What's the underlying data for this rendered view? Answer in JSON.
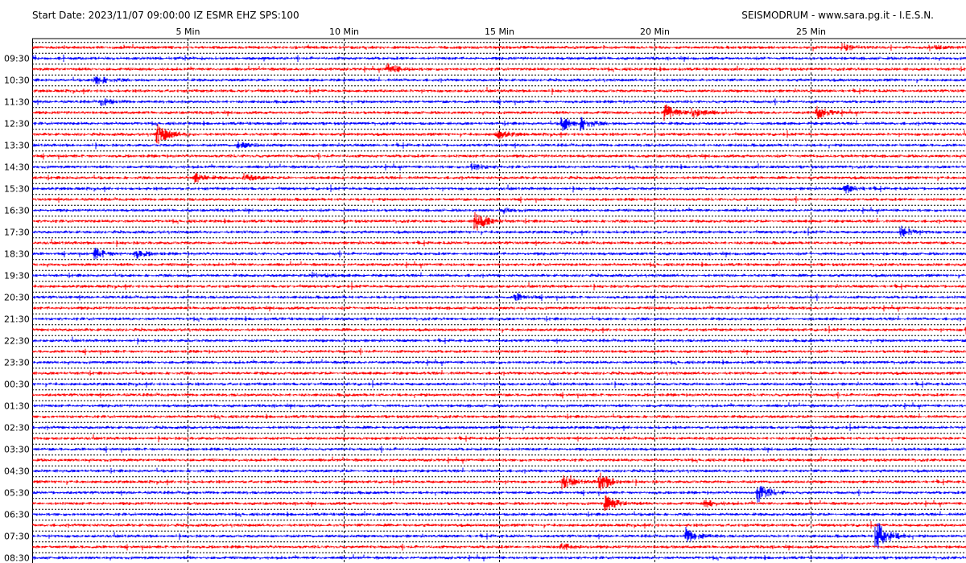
{
  "header": {
    "left_text": "Start Date: 2023/11/07 09:00:00 IZ ESMR EHZ SPS:100",
    "right_text": "SEISMODRUM - www.sara.pg.it - I.E.S.N."
  },
  "colors": {
    "trace_a": "#ff0000",
    "trace_b": "#0000ff",
    "grid": "#000000",
    "background": "#ffffff"
  },
  "chart_data": {
    "type": "line",
    "x_ticks": [
      {
        "value": 5,
        "label": "5 Min"
      },
      {
        "value": 10,
        "label": "10 Min"
      },
      {
        "value": 15,
        "label": "15 Min"
      },
      {
        "value": 20,
        "label": "20 Min"
      },
      {
        "value": 25,
        "label": "25 Min"
      }
    ],
    "x_range": [
      0,
      30
    ],
    "trace_count": 48,
    "time_labels": [
      "09:30",
      "10:30",
      "11:30",
      "12:30",
      "13:30",
      "14:30",
      "15:30",
      "16:30",
      "17:30",
      "18:30",
      "19:30",
      "20:30",
      "21:30",
      "22:30",
      "23:30",
      "00:30",
      "01:30",
      "02:30",
      "03:30",
      "04:30",
      "05:30",
      "06:30",
      "07:30",
      "08:30"
    ],
    "events": [
      {
        "trace": 0,
        "minute": 26.0,
        "amp": 0.5
      },
      {
        "trace": 0,
        "minute": 28.8,
        "amp": 0.4
      },
      {
        "trace": 3,
        "minute": 2.0,
        "amp": 0.8
      },
      {
        "trace": 2,
        "minute": 11.4,
        "amp": 0.8
      },
      {
        "trace": 5,
        "minute": 2.2,
        "amp": 0.5
      },
      {
        "trace": 6,
        "minute": 20.3,
        "amp": 1.2
      },
      {
        "trace": 6,
        "minute": 21.2,
        "amp": 0.8
      },
      {
        "trace": 6,
        "minute": 25.2,
        "amp": 0.8
      },
      {
        "trace": 7,
        "minute": 17.0,
        "amp": 1.0
      },
      {
        "trace": 7,
        "minute": 17.6,
        "amp": 0.8
      },
      {
        "trace": 8,
        "minute": 4.0,
        "amp": 1.5
      },
      {
        "trace": 8,
        "minute": 14.9,
        "amp": 0.7
      },
      {
        "trace": 9,
        "minute": 6.6,
        "amp": 0.5
      },
      {
        "trace": 11,
        "minute": 14.1,
        "amp": 0.5
      },
      {
        "trace": 12,
        "minute": 5.2,
        "amp": 0.7
      },
      {
        "trace": 12,
        "minute": 6.8,
        "amp": 0.5
      },
      {
        "trace": 13,
        "minute": 26.1,
        "amp": 0.6
      },
      {
        "trace": 15,
        "minute": 15.1,
        "amp": 0.3
      },
      {
        "trace": 16,
        "minute": 14.2,
        "amp": 1.5
      },
      {
        "trace": 17,
        "minute": 27.9,
        "amp": 0.8
      },
      {
        "trace": 19,
        "minute": 2.0,
        "amp": 0.8
      },
      {
        "trace": 19,
        "minute": 3.3,
        "amp": 0.6
      },
      {
        "trace": 21,
        "minute": 9.0,
        "amp": 0.5
      },
      {
        "trace": 23,
        "minute": 15.5,
        "amp": 0.5
      },
      {
        "trace": 26,
        "minute": 30.0,
        "amp": 0.6
      },
      {
        "trace": 40,
        "minute": 17.0,
        "amp": 1.0
      },
      {
        "trace": 40,
        "minute": 18.2,
        "amp": 1.4
      },
      {
        "trace": 41,
        "minute": 23.3,
        "amp": 1.3
      },
      {
        "trace": 42,
        "minute": 18.4,
        "amp": 1.2
      },
      {
        "trace": 42,
        "minute": 21.6,
        "amp": 0.5
      },
      {
        "trace": 45,
        "minute": 21.0,
        "amp": 1.1
      },
      {
        "trace": 45,
        "minute": 27.1,
        "amp": 2.5
      },
      {
        "trace": 46,
        "minute": 17.0,
        "amp": 0.5
      }
    ]
  }
}
